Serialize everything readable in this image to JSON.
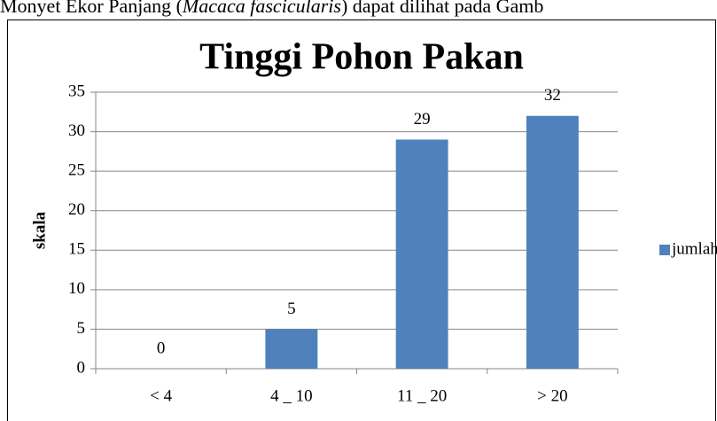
{
  "caption": {
    "before": "Monyet Ekor Panjang (",
    "italic": "Macaca fascicularis",
    "after": ") dapat dilihat pada Gamb"
  },
  "chart_data": {
    "type": "bar",
    "title": "Tinggi Pohon Pakan",
    "y_label": "skala",
    "categories": [
      "< 4",
      "4 _ 10",
      "11 _ 20",
      "> 20"
    ],
    "series": [
      {
        "name": "jumlah",
        "color": "#4f81bd",
        "values": [
          0,
          5,
          29,
          32
        ]
      }
    ],
    "ylim": [
      0,
      35
    ],
    "yticks": [
      0,
      5,
      10,
      15,
      20,
      25,
      30,
      35
    ],
    "grid": true,
    "legend": "right"
  }
}
